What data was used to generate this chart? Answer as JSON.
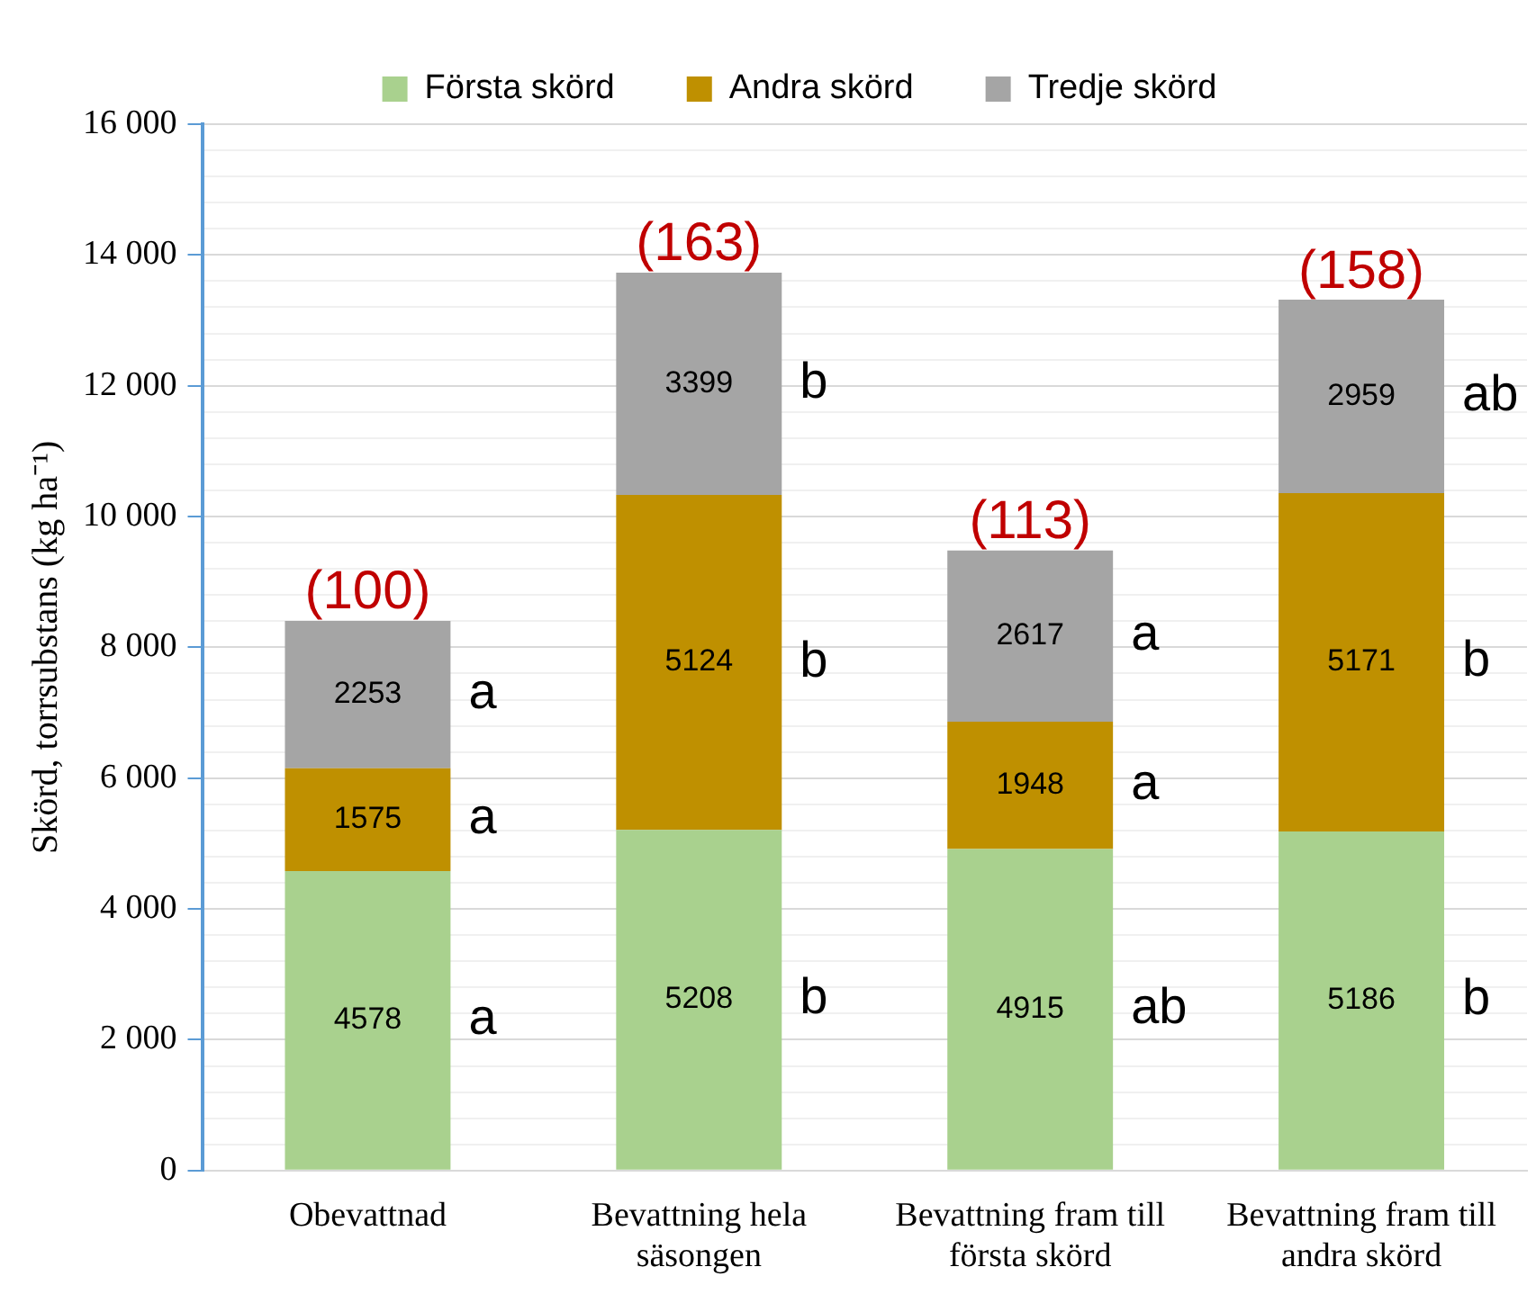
{
  "chart_data": {
    "type": "bar",
    "stacked": true,
    "ylabel": "Skörd, torrsubstans (kg ha⁻¹)",
    "categories": [
      "Obevattnad",
      "Bevattning hela säsongen",
      "Bevattning fram till första skörd",
      "Bevattning fram till andra skörd"
    ],
    "series": [
      {
        "name": "Första skörd",
        "color": "#a9d18e",
        "values": [
          4578,
          5208,
          4915,
          5186
        ]
      },
      {
        "name": "Andra skörd",
        "color": "#bf9000",
        "values": [
          1575,
          5124,
          1948,
          5171
        ]
      },
      {
        "name": "Tredje skörd",
        "color": "#a5a5a5",
        "values": [
          2253,
          3399,
          2617,
          2959
        ]
      }
    ],
    "data_labels": true,
    "legend": "top",
    "grid": "y",
    "ylim": [
      0,
      16000
    ],
    "yticks": [
      0,
      {
        "value": 400,
        "label": null
      },
      {
        "value": 800,
        "label": null
      },
      {
        "value": 1200,
        "label": null
      },
      {
        "value": 1600,
        "label": null
      },
      {
        "value": 2000,
        "label": "2 000"
      },
      {
        "value": 2400,
        "label": null
      },
      {
        "value": 2800,
        "label": null
      },
      {
        "value": 3200,
        "label": null
      },
      {
        "value": 3600,
        "label": null
      },
      {
        "value": 4000,
        "label": "4 000"
      },
      {
        "value": 4400,
        "label": null
      },
      {
        "value": 4800,
        "label": null
      },
      {
        "value": 5200,
        "label": null
      },
      {
        "value": 5600,
        "label": null
      },
      {
        "value": 6000,
        "label": "6 000"
      },
      {
        "value": 6400,
        "label": null
      },
      {
        "value": 6800,
        "label": null
      },
      {
        "value": 7200,
        "label": null
      },
      {
        "value": 7600,
        "label": null
      },
      {
        "value": 8000,
        "label": "8 000"
      },
      {
        "value": 8400,
        "label": null
      },
      {
        "value": 8800,
        "label": null
      },
      {
        "value": 9200,
        "label": null
      },
      {
        "value": 9600,
        "label": null
      },
      {
        "value": 10000,
        "label": "10 000"
      },
      {
        "value": 10400,
        "label": null
      },
      {
        "value": 10800,
        "label": null
      },
      {
        "value": 11200,
        "label": null
      },
      {
        "value": 11600,
        "label": null
      },
      {
        "value": 12000,
        "label": "12 000"
      },
      {
        "value": 12400,
        "label": null
      },
      {
        "value": 12800,
        "label": null
      },
      {
        "value": 13200,
        "label": null
      },
      {
        "value": 13600,
        "label": null
      },
      {
        "value": 14000,
        "label": "14 000"
      },
      {
        "value": 14400,
        "label": null
      },
      {
        "value": 14800,
        "label": null
      },
      {
        "value": 15200,
        "label": null
      },
      {
        "value": 15600,
        "label": null
      },
      {
        "value": 16000,
        "label": "16 000"
      }
    ],
    "annotations": [
      {
        "text": "(100)",
        "x": "Obevattnad",
        "y": 8406
      },
      {
        "text": "(163)",
        "x": "Bevattning hela säsongen",
        "y": 13731
      },
      {
        "text": "(113)",
        "x": "Bevattning fram till första skörd",
        "y": 9480
      },
      {
        "text": "(158)",
        "x": "Bevattning fram till andra skörd",
        "y": 13316
      },
      "a",
      "a",
      "a",
      "b",
      "b",
      "b",
      "ab",
      "a",
      "a",
      "b",
      "b",
      "ab"
    ]
  }
}
